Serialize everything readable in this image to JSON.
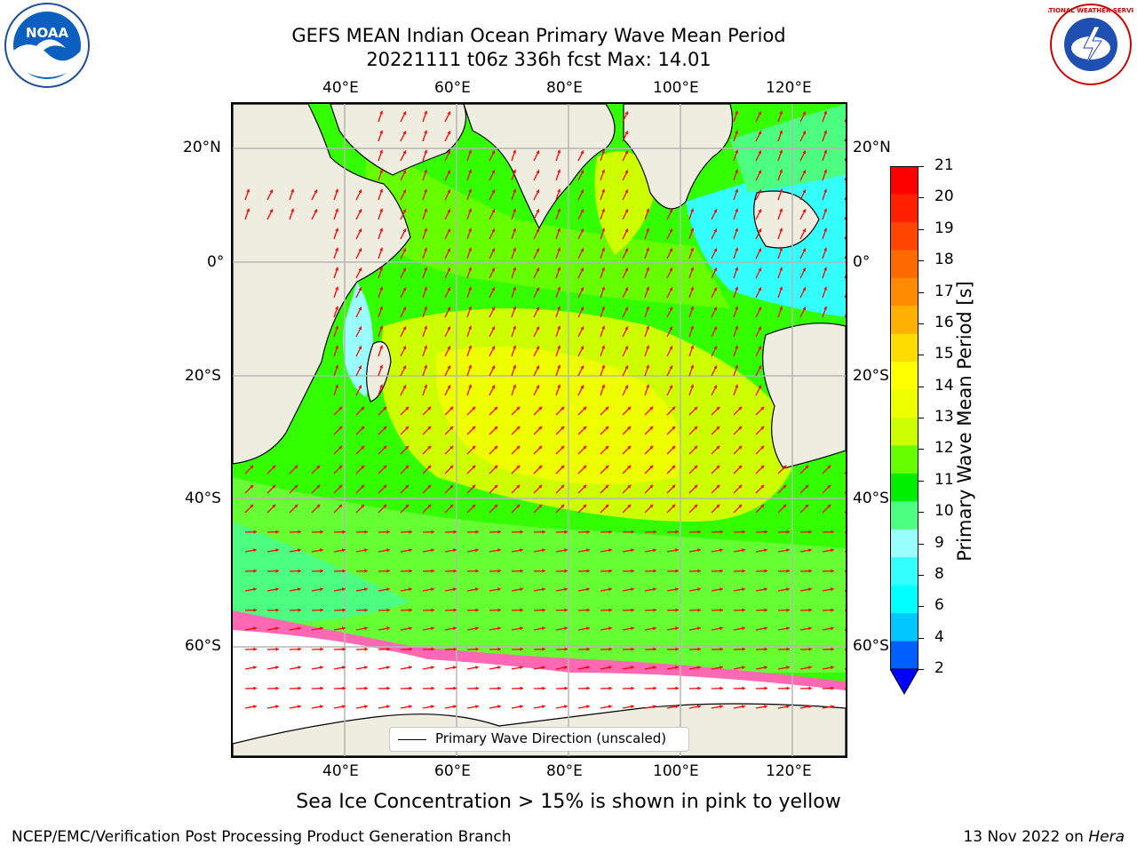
{
  "title": {
    "line1": "GEFS MEAN Indian Ocean Primary Wave Mean Period",
    "line2": "20221111 t06z 336h fcst   Max: 14.01"
  },
  "logos": {
    "left": "NOAA",
    "right": "NATIONAL WEATHER SERVICE"
  },
  "map": {
    "lon_ticks": [
      "40°E",
      "60°E",
      "80°E",
      "100°E",
      "120°E"
    ],
    "lat_ticks": [
      "20°N",
      "0°",
      "20°S",
      "40°S",
      "60°S"
    ],
    "ocean_colors": {
      "lowest": "#33ffff",
      "low": "#99ffff",
      "mid_low": "#4dff80",
      "mid": "#33ff00",
      "mid_high": "#99ff00",
      "high": "#ccff00",
      "highest": "#eeff00",
      "ice": "#ff69b4",
      "land": "#efede0",
      "arrow": "#ff0000"
    },
    "legend_label": "Primary Wave Direction (unscaled)"
  },
  "colorbar": {
    "label": "Primary Wave Mean Period [s]",
    "ticks": [
      "21",
      "20",
      "19",
      "18",
      "17",
      "16",
      "15",
      "14",
      "13",
      "12",
      "11",
      "10",
      "9",
      "8",
      "6",
      "4",
      "2"
    ],
    "colors_top_to_bottom": [
      "#ff0000",
      "#ff2000",
      "#ff4500",
      "#ff6a00",
      "#ff8c00",
      "#ffb000",
      "#ffdc00",
      "#ffff00",
      "#eeff00",
      "#ccff00",
      "#66ff00",
      "#00ee00",
      "#4dff80",
      "#99ffff",
      "#33ffff",
      "#00ffff",
      "#00c8ff",
      "#0060ff"
    ],
    "extend_color": "#0000ff"
  },
  "footer": {
    "note": "Sea Ice Concentration > 15% is shown in pink to yellow",
    "left": "NCEP/EMC/Verification Post Processing Product Generation Branch",
    "right_date": "13 Nov 2022 on",
    "right_machine": "Hera"
  }
}
